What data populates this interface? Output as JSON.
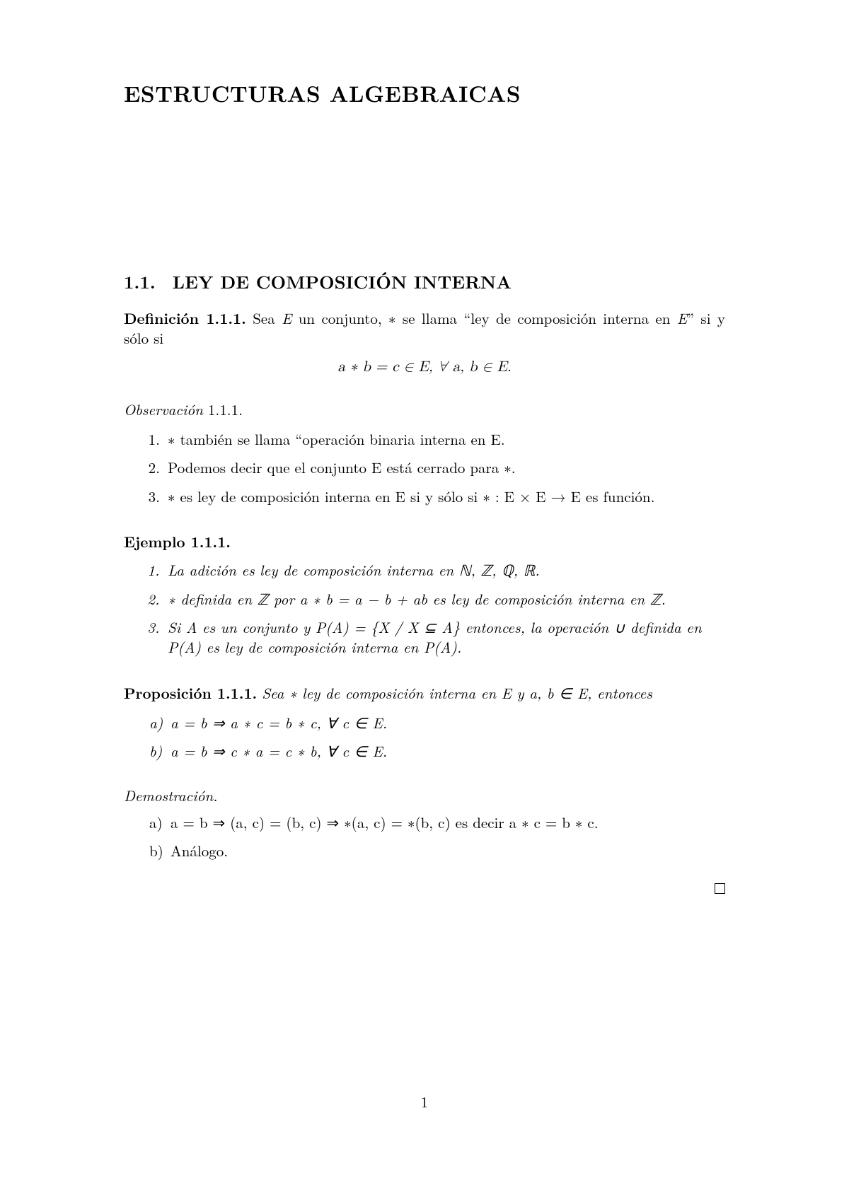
{
  "page": {
    "number": "1",
    "background_color": "#ffffff",
    "text_color": "#000000"
  },
  "chapter": {
    "title": "ESTRUCTURAS ALGEBRAICAS"
  },
  "section": {
    "number": "1.1.",
    "title": "LEY DE COMPOSICIÓN INTERNA"
  },
  "definition": {
    "label": "Definición 1.1.1.",
    "intro_a": "Sea ",
    "intro_b": " un conjunto, ∗ se llama “ley de composición interna en ",
    "intro_c": "” si y sólo si",
    "formula": "a ∗ b = c ∈ E,  ∀ a, b ∈ E."
  },
  "observation": {
    "label": "Observación",
    "num": " 1.1.1.",
    "items": [
      "∗ también se llama “operación binaria interna en E.",
      "Podemos decir que el conjunto E está cerrado para ∗.",
      "∗ es ley de composición interna en E si y sólo si ∗ : E × E → E es función."
    ]
  },
  "example": {
    "label": "Ejemplo 1.1.1.",
    "items": [
      "La adición es ley de composición interna en ℕ, ℤ, ℚ, ℝ.",
      "∗ definida en ℤ por a ∗ b = a − b + ab es ley de composición interna en ℤ.",
      "Si A es un conjunto y P(A) = {X / X ⊆ A} entonces, la operación ∪ definida en P(A) es ley de composición interna en P(A)."
    ]
  },
  "proposition": {
    "label": "Proposición 1.1.1.",
    "stmt": "Sea ∗ ley de composición interna en E y a, b ∈ E, entonces",
    "items": [
      {
        "marker": "a)",
        "text": "a = b ⇒ a ∗ c = b ∗ c,  ∀ c ∈ E."
      },
      {
        "marker": "b)",
        "text": "a = b ⇒ c ∗ a = c ∗ b,  ∀ c ∈ E."
      }
    ]
  },
  "proof": {
    "label": "Demostración.",
    "items": [
      {
        "marker": "a)",
        "text": "a = b ⇒ (a, c) = (b, c) ⇒ ∗(a, c) = ∗(b, c) es decir a ∗ c = b ∗ c."
      },
      {
        "marker": "b)",
        "text": "Análogo."
      }
    ]
  }
}
